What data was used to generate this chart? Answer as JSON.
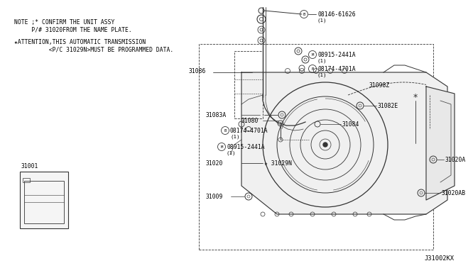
{
  "bg_color": "#ffffff",
  "line_color": "#333333",
  "text_color": "#000000",
  "font_size": 5.8,
  "note1": "NOTE ;* CONFIRM THE UNIT ASSY",
  "note2": "     P/# 31020FROM THE NAME PLATE.",
  "note3": "★ATTENTION,THIS AUTOMATIC TRANSMISSION",
  "note4": "          <P/C 31029N>MUST BE PROGRAMMED DATA.",
  "diagram_id": "J31002KX",
  "label_31086": "31086",
  "label_b1": "08146-61626",
  "label_b1_qty": "(1)",
  "label_m1": "08915-2441A",
  "label_m1_qty": "(1)",
  "label_b2": "08174-4701A",
  "label_b2_qty": "(1)",
  "label_31098z": "31098Z",
  "label_31082e": "31082E",
  "label_31083a": "31083A",
  "label_31080": "31080",
  "label_31084": "31084",
  "label_b3": "08174-4701A",
  "label_b3_qty": "(1)",
  "label_m2": "08915-2441A",
  "label_m2_qty": "(1)",
  "label_31020": "31020",
  "label_31029n": "★ 31029N",
  "label_31009": "31009",
  "label_31020a": "31020A",
  "label_31020ab": "31020AB",
  "label_31001": "31001"
}
